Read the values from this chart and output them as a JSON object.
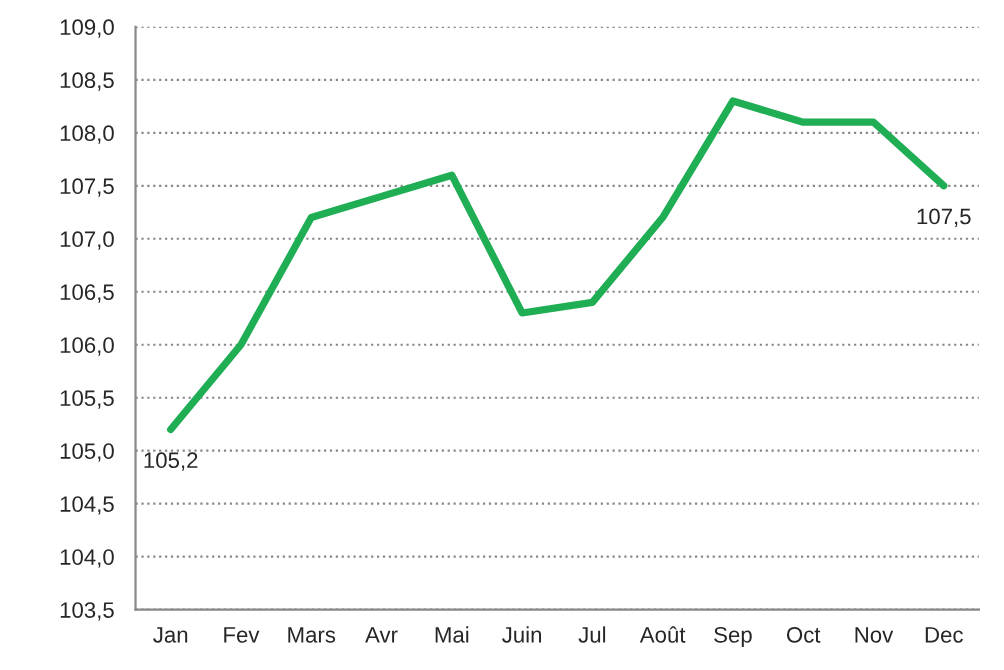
{
  "chart_data": {
    "type": "line",
    "categories": [
      "Jan",
      "Fev",
      "Mars",
      "Avr",
      "Mai",
      "Juin",
      "Jul",
      "Août",
      "Sep",
      "Oct",
      "Nov",
      "Dec"
    ],
    "series": [
      {
        "color": "#1fae54",
        "values": [
          105.2,
          106.0,
          107.2,
          107.4,
          107.6,
          106.3,
          106.4,
          107.2,
          108.3,
          108.1,
          108.1,
          107.5
        ],
        "value_labels": [
          "105,2",
          null,
          null,
          null,
          null,
          null,
          null,
          null,
          null,
          null,
          null,
          "107,5"
        ]
      }
    ],
    "ylim": [
      103.5,
      109.0
    ],
    "yticks": [
      {
        "value": 103.5,
        "label": "103,5"
      },
      {
        "value": 104.0,
        "label": "104,0"
      },
      {
        "value": 104.5,
        "label": "104,5"
      },
      {
        "value": 105.0,
        "label": "105,0"
      },
      {
        "value": 105.5,
        "label": "105,5"
      },
      {
        "value": 106.0,
        "label": "106,0"
      },
      {
        "value": 106.5,
        "label": "106,5"
      },
      {
        "value": 107.0,
        "label": "107,0"
      },
      {
        "value": 107.5,
        "label": "107,5"
      },
      {
        "value": 108.0,
        "label": "108,0"
      },
      {
        "value": 108.5,
        "label": "108,5"
      },
      {
        "value": 109.0,
        "label": "109,0"
      }
    ],
    "grid": "y",
    "line_style": "solid",
    "marker": "none"
  }
}
